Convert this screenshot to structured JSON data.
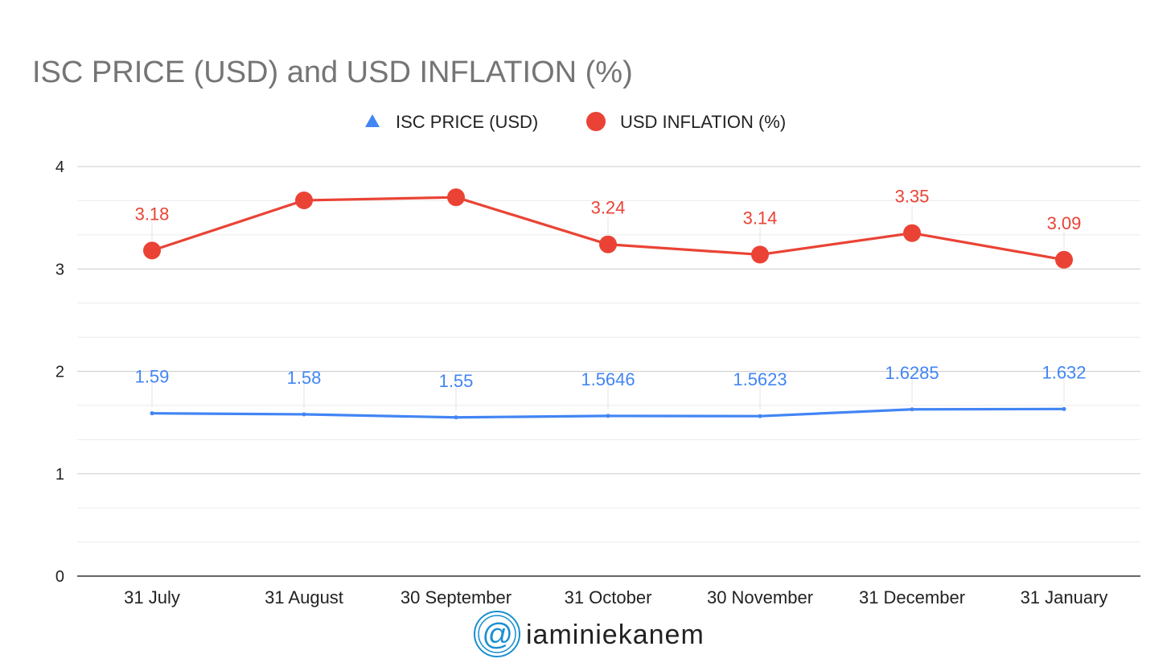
{
  "chart_data": {
    "type": "line",
    "title": "ISC PRICE (USD) and USD INFLATION (%)",
    "xlabel": "",
    "ylabel": "",
    "categories": [
      "31 July",
      "31 August",
      "30 September",
      "31 October",
      "30 November",
      "31 December",
      "31 January"
    ],
    "ylim": [
      0,
      4
    ],
    "yticks": [
      "0",
      "1",
      "2",
      "3",
      "4"
    ],
    "grid": true,
    "legend": "top-center",
    "series": [
      {
        "name": "ISC PRICE (USD)",
        "marker": "triangle",
        "color": "#4285f4",
        "values": [
          1.59,
          1.58,
          1.55,
          1.5646,
          1.5623,
          1.6285,
          1.632
        ],
        "labels": [
          "1.59",
          "1.58",
          "1.55",
          "1.5646",
          "1.5623",
          "1.6285",
          "1.632"
        ]
      },
      {
        "name": "USD INFLATION (%)",
        "marker": "circle",
        "color": "#ea4335",
        "values": [
          3.18,
          3.67,
          3.7,
          3.24,
          3.14,
          3.35,
          3.09
        ],
        "labels": [
          "3.18",
          "",
          "",
          "3.24",
          "3.14",
          "3.35",
          "3.09"
        ]
      }
    ]
  },
  "watermark": {
    "symbol": "@",
    "text": "iaminiekanem",
    "color": "#1a8fd0"
  }
}
